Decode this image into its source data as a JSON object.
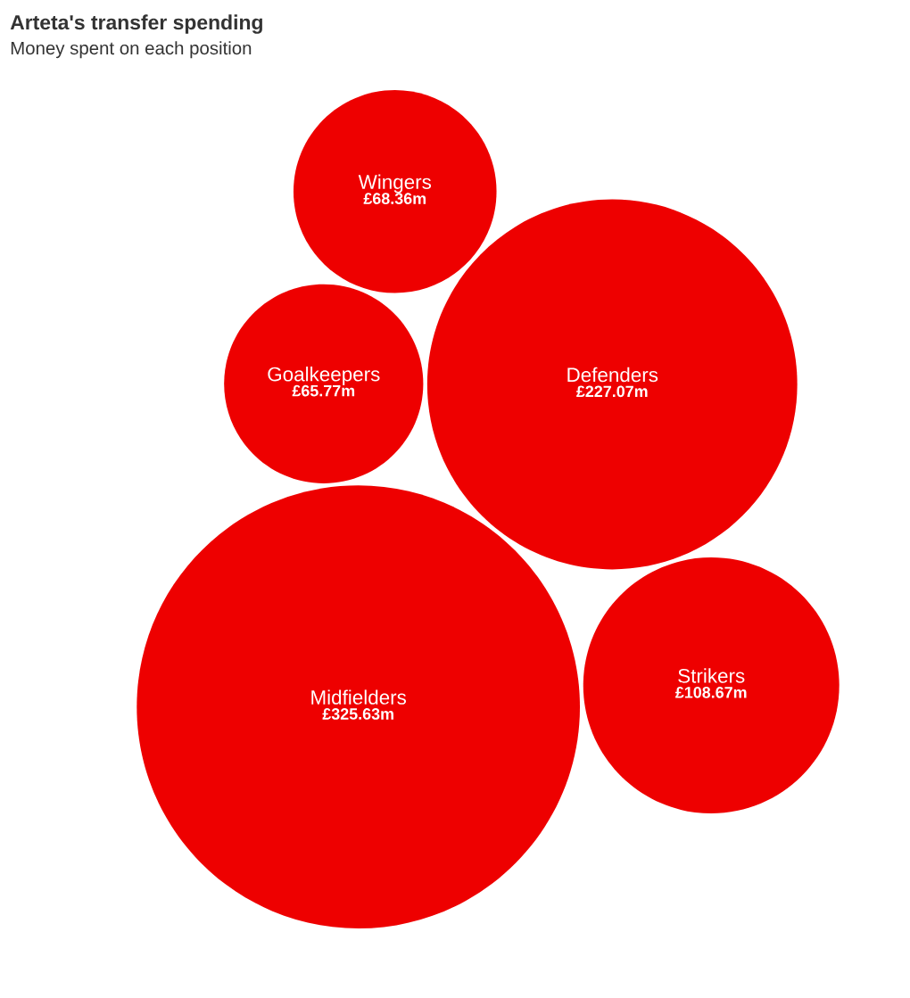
{
  "chart_data": {
    "type": "other",
    "title": "Arteta's transfer spending",
    "subtitle": "Money spent on each position",
    "categories": [
      "Midfielders",
      "Defenders",
      "Strikers",
      "Goalkeepers",
      "Wingers"
    ],
    "values": [
      325.63,
      227.07,
      108.67,
      65.77,
      68.36
    ],
    "value_labels": [
      "£325.63m",
      "£227.07m",
      "£108.67m",
      "£65.77m",
      "£68.36m"
    ],
    "color": "#ee0000"
  }
}
